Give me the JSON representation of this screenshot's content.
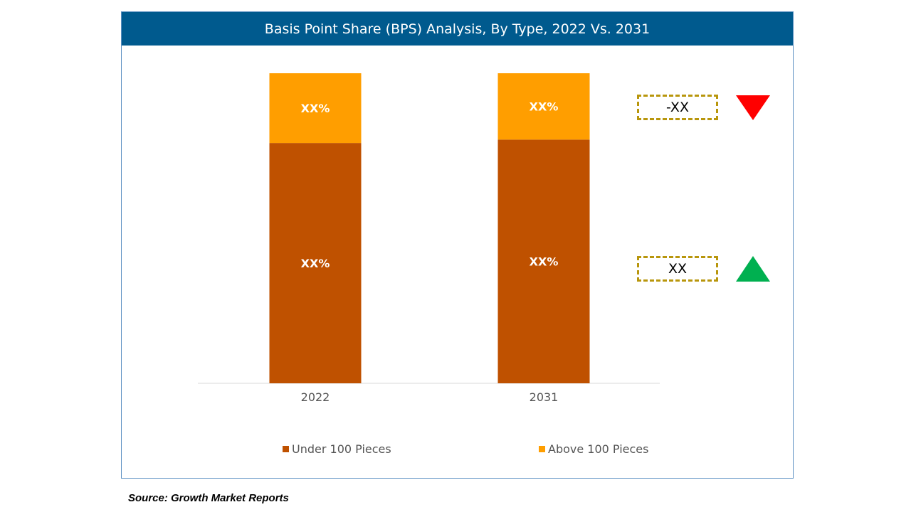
{
  "chart_data": {
    "type": "bar",
    "stacked": true,
    "title": "Basis Point Share (BPS) Analysis, By Type, 2022 Vs. 2031",
    "categories": [
      "2022",
      "2031"
    ],
    "series": [
      {
        "name": "Under 100 Pieces",
        "color": "#bf5100",
        "values": [
          77.5,
          78.6
        ],
        "labels": [
          "XX%",
          "XX%"
        ]
      },
      {
        "name": "Above 100 Pieces",
        "color": "#ff9e00",
        "values": [
          22.5,
          21.4
        ],
        "labels": [
          "XX%",
          "XX%"
        ]
      }
    ],
    "ylim": [
      0,
      100
    ],
    "xlabel": "",
    "ylabel": "",
    "legend_position": "bottom",
    "changes": [
      {
        "series": "Above 100 Pieces",
        "value": "-XX",
        "direction": "down",
        "color": "#ff0000"
      },
      {
        "series": "Under 100 Pieces",
        "value": "XX",
        "direction": "up",
        "color": "#00b050"
      }
    ]
  },
  "source": "Source: Growth Market Reports"
}
